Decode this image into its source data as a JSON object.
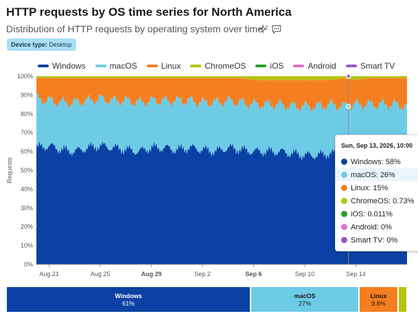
{
  "header": {
    "title": "HTTP requests by OS time series for North America",
    "subtitle": "Distribution of HTTP requests by operating system over time"
  },
  "filter": {
    "label": "Device type:",
    "value": "Desktop"
  },
  "colors": {
    "Windows": "#0b41a4",
    "macOS": "#6ecbe6",
    "Linux": "#f57f20",
    "ChromeOS": "#b5c40f",
    "iOS": "#2a9d2a",
    "Android": "#e074c6",
    "Smart TV": "#8e5cc3"
  },
  "chart_data": {
    "type": "area",
    "stacked": true,
    "percent": true,
    "ylabel": "Requests",
    "yticks": [
      "0%",
      "10%",
      "20%",
      "30%",
      "40%",
      "50%",
      "60%",
      "70%",
      "80%",
      "90%",
      "100%"
    ],
    "ylim": [
      0,
      100
    ],
    "x_range": [
      "2026-08-20",
      "2026-09-18"
    ],
    "xticks": [
      {
        "label": "Aug 21",
        "date": "2026-08-21",
        "bold": false
      },
      {
        "label": "Aug 25",
        "date": "2026-08-25",
        "bold": false
      },
      {
        "label": "Aug 29",
        "date": "2026-08-29",
        "bold": true
      },
      {
        "label": "Sep 2",
        "date": "2026-09-02",
        "bold": false
      },
      {
        "label": "Sep 6",
        "date": "2026-09-06",
        "bold": true
      },
      {
        "label": "Sep 10",
        "date": "2026-09-10",
        "bold": false
      },
      {
        "label": "Sep 14",
        "date": "2026-09-14",
        "bold": false
      }
    ],
    "series_order": [
      "Windows",
      "macOS",
      "Linux",
      "ChromeOS",
      "iOS",
      "Android",
      "Smart TV"
    ],
    "daily_bands": {
      "dates": [
        "2026-08-20",
        "2026-08-21",
        "2026-08-22",
        "2026-08-23",
        "2026-08-24",
        "2026-08-25",
        "2026-08-26",
        "2026-08-27",
        "2026-08-28",
        "2026-08-29",
        "2026-08-30",
        "2026-08-31",
        "2026-09-01",
        "2026-09-02",
        "2026-09-03",
        "2026-09-04",
        "2026-09-05",
        "2026-09-06",
        "2026-09-07",
        "2026-09-08",
        "2026-09-09",
        "2026-09-10",
        "2026-09-11",
        "2026-09-12",
        "2026-09-13",
        "2026-09-14",
        "2026-09-15",
        "2026-09-16",
        "2026-09-17",
        "2026-09-18"
      ],
      "windows_top": [
        62,
        63,
        61,
        60,
        62,
        63,
        62,
        61,
        60,
        62,
        62,
        61,
        62,
        61,
        60,
        62,
        61,
        60,
        60,
        60,
        59,
        58,
        58,
        59,
        58,
        59,
        58,
        58,
        58,
        58
      ],
      "macos_top": [
        88,
        87,
        86,
        86,
        87,
        88,
        87,
        87,
        86,
        87,
        87,
        87,
        87,
        86,
        86,
        87,
        86,
        85,
        85,
        85,
        84,
        84,
        84,
        85,
        84,
        85,
        85,
        85,
        85,
        84
      ],
      "linux_top": [
        99,
        99,
        99,
        99,
        99,
        99,
        99,
        99,
        99,
        99,
        99,
        99,
        99,
        99,
        99,
        99,
        99,
        98,
        98,
        98,
        98,
        98,
        98,
        98,
        99,
        98,
        99,
        99,
        99,
        99
      ]
    },
    "tooltip": {
      "date": "Sun, Sep 13, 2026, 10:00",
      "rows": [
        {
          "name": "Windows",
          "value": "58%",
          "highlight": false
        },
        {
          "name": "macOS",
          "value": "26%",
          "highlight": true
        },
        {
          "name": "Linux",
          "value": "15%",
          "highlight": false
        },
        {
          "name": "ChromeOS",
          "value": "0.73%",
          "highlight": false
        },
        {
          "name": "iOS",
          "value": "0.011%",
          "highlight": false
        },
        {
          "name": "Android",
          "value": "0%",
          "highlight": false
        },
        {
          "name": "Smart TV",
          "value": "0%",
          "highlight": false
        }
      ]
    },
    "summary": [
      {
        "name": "Windows",
        "value": "61%",
        "share": 61
      },
      {
        "name": "macOS",
        "value": "27%",
        "share": 27
      },
      {
        "name": "Linux",
        "value": "9.8%",
        "share": 9.8
      },
      {
        "name": "ChromeOS",
        "value": "",
        "share": 2.2
      }
    ]
  }
}
